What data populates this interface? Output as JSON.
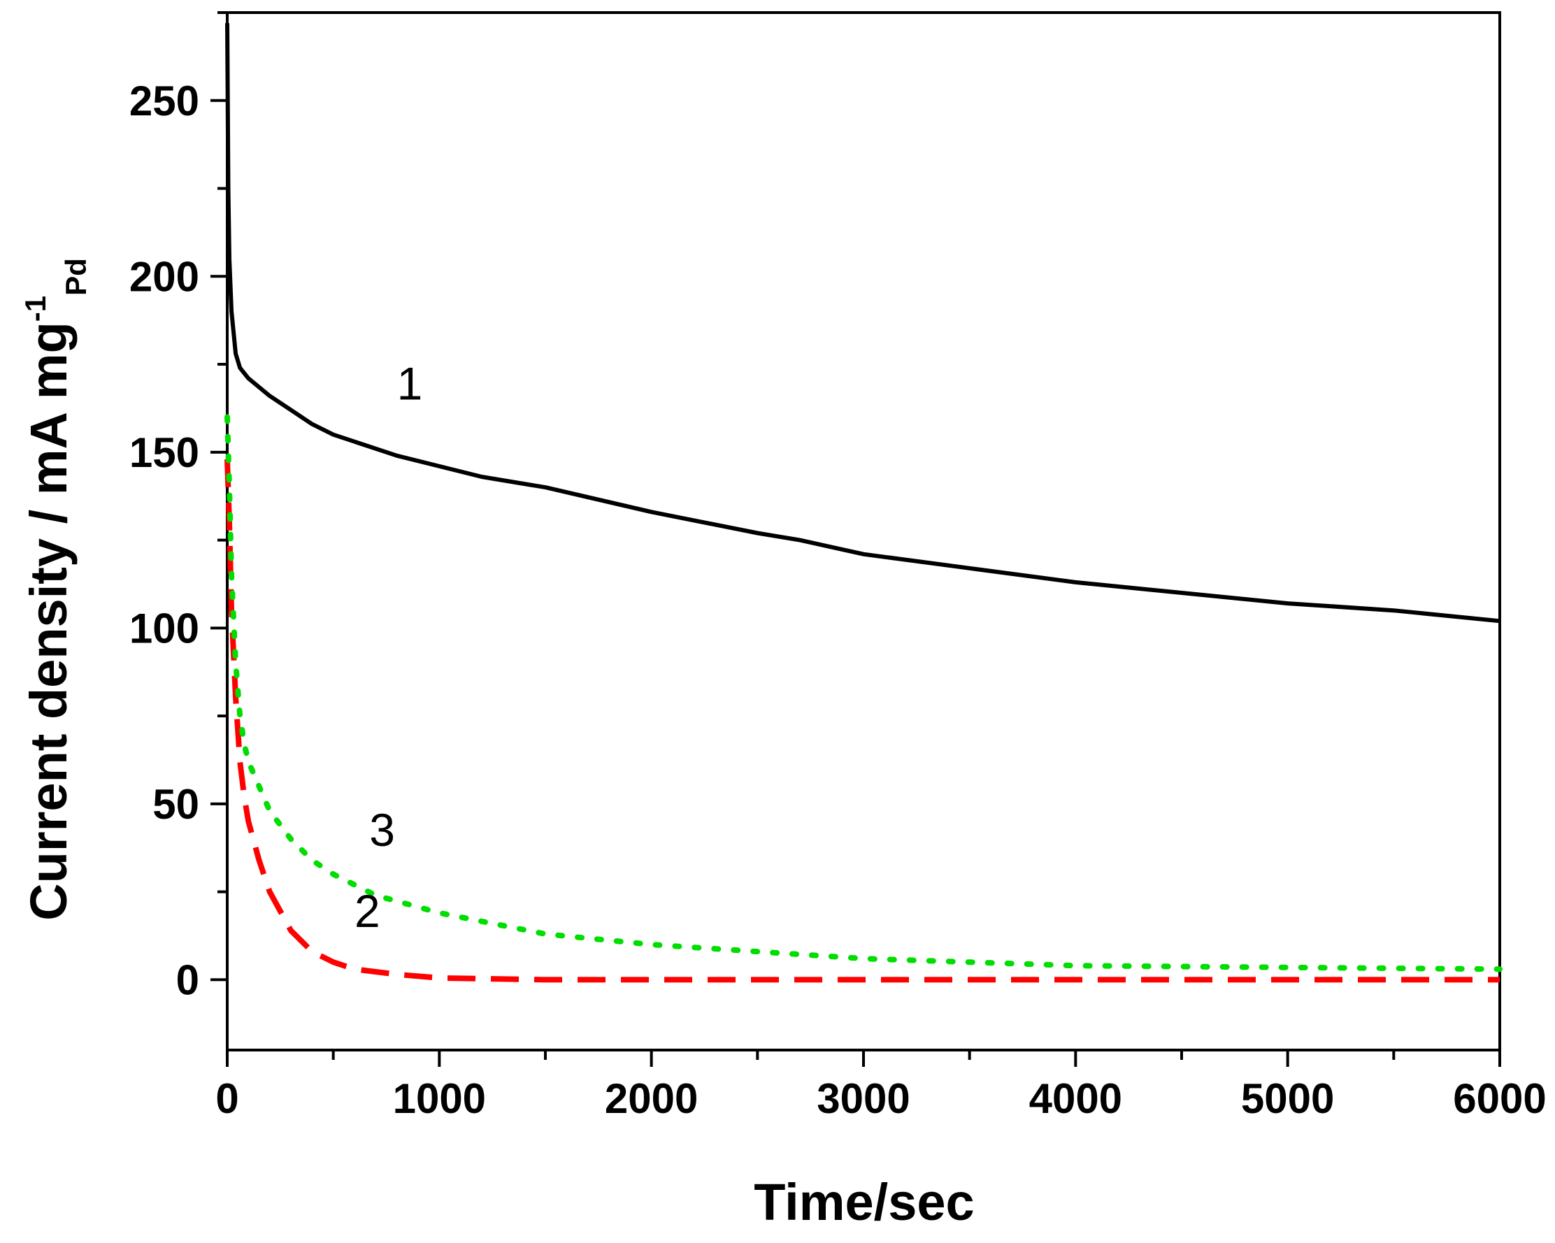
{
  "chart_data": {
    "type": "line",
    "xlabel": "Time/sec",
    "ylabel": {
      "main": "Current density / mA mg",
      "superscript": "-1",
      "subscript": "Pd"
    },
    "xlim": [
      0,
      6000
    ],
    "ylim": [
      -20,
      275
    ],
    "x_ticks": [
      0,
      1000,
      2000,
      3000,
      4000,
      5000,
      6000
    ],
    "y_ticks": [
      0,
      50,
      100,
      150,
      200,
      250
    ],
    "grid": false,
    "legend": "none",
    "series": [
      {
        "name": "1",
        "color": "#000000",
        "style": "solid",
        "label_at": [
          800,
          165
        ],
        "points": [
          [
            0,
            272
          ],
          [
            5,
            225
          ],
          [
            10,
            205
          ],
          [
            20,
            190
          ],
          [
            40,
            178
          ],
          [
            60,
            174
          ],
          [
            100,
            171
          ],
          [
            200,
            166
          ],
          [
            300,
            162
          ],
          [
            400,
            158
          ],
          [
            500,
            155
          ],
          [
            600,
            153
          ],
          [
            800,
            149
          ],
          [
            1000,
            146
          ],
          [
            1200,
            143
          ],
          [
            1500,
            140
          ],
          [
            2000,
            133
          ],
          [
            2500,
            127
          ],
          [
            2700,
            125
          ],
          [
            3000,
            121
          ],
          [
            3500,
            117
          ],
          [
            4000,
            113
          ],
          [
            4500,
            110
          ],
          [
            5000,
            107
          ],
          [
            5500,
            105
          ],
          [
            6000,
            102
          ]
        ]
      },
      {
        "name": "2",
        "color": "#ff0000",
        "style": "dashed",
        "label_at": [
          600,
          15
        ],
        "points": [
          [
            0,
            148
          ],
          [
            10,
            130
          ],
          [
            20,
            105
          ],
          [
            40,
            80
          ],
          [
            60,
            62
          ],
          [
            80,
            52
          ],
          [
            100,
            45
          ],
          [
            150,
            34
          ],
          [
            200,
            25
          ],
          [
            300,
            14
          ],
          [
            400,
            8
          ],
          [
            500,
            5
          ],
          [
            600,
            3
          ],
          [
            800,
            1.5
          ],
          [
            1000,
            0.5
          ],
          [
            1500,
            0
          ],
          [
            2000,
            0
          ],
          [
            3000,
            0
          ],
          [
            4000,
            0
          ],
          [
            5000,
            0
          ],
          [
            6000,
            0
          ]
        ]
      },
      {
        "name": "3",
        "color": "#00dd00",
        "style": "dotted",
        "label_at": [
          670,
          38
        ],
        "points": [
          [
            0,
            160
          ],
          [
            10,
            140
          ],
          [
            20,
            115
          ],
          [
            40,
            90
          ],
          [
            60,
            75
          ],
          [
            80,
            67
          ],
          [
            100,
            62
          ],
          [
            200,
            48
          ],
          [
            300,
            40
          ],
          [
            400,
            34
          ],
          [
            500,
            30
          ],
          [
            700,
            24
          ],
          [
            1000,
            19
          ],
          [
            1500,
            13
          ],
          [
            2000,
            10
          ],
          [
            3000,
            6
          ],
          [
            4000,
            4
          ],
          [
            5000,
            3.5
          ],
          [
            6000,
            3
          ]
        ]
      }
    ]
  }
}
